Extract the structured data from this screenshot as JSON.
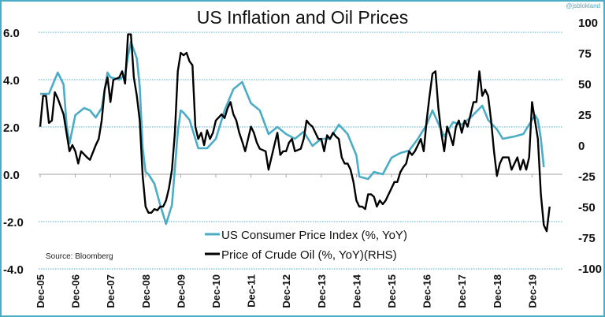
{
  "watermark": "@jsblokland",
  "chart_data": {
    "type": "line",
    "title": "US Inflation and Oil Prices",
    "source": "Source: Bloomberg",
    "grid": true,
    "legend_placement": "bottom-center",
    "colors": {
      "cpi": "#4bacc6",
      "oil": "#000000",
      "grid": "#4bacc6",
      "zero_line": "#a6a6a6",
      "frame": "#4bacc6"
    },
    "x_tick_labels": [
      "Dec-05",
      "Dec-06",
      "Dec-07",
      "Dec-08",
      "Dec-09",
      "Dec-10",
      "Dec-11",
      "Dec-12",
      "Dec-13",
      "Dec-14",
      "Dec-15",
      "Dec-16",
      "Dec-17",
      "Dec-18",
      "Dec-19"
    ],
    "xlim": [
      "2005-12",
      "2020-06"
    ],
    "y_left": {
      "ticks": [
        "6.0",
        "4.0",
        "2.0",
        "0.0",
        "-2.0",
        "-4.0"
      ],
      "ylim": [
        -4,
        6.67
      ]
    },
    "y_right": {
      "ticks": [
        "100",
        "75",
        "50",
        "25",
        "0",
        "-25",
        "-50",
        "-75",
        "-100"
      ],
      "ylim": [
        -100,
        100
      ]
    },
    "series": [
      {
        "name": "US Consumer Price Index (%, YoY)",
        "axis": "left",
        "points": [
          [
            "2005-12",
            3.4
          ],
          [
            "2006-03",
            3.4
          ],
          [
            "2006-06",
            4.3
          ],
          [
            "2006-08",
            3.8
          ],
          [
            "2006-09",
            2.1
          ],
          [
            "2006-10",
            1.3
          ],
          [
            "2006-12",
            2.5
          ],
          [
            "2007-03",
            2.8
          ],
          [
            "2007-05",
            2.7
          ],
          [
            "2007-07",
            2.4
          ],
          [
            "2007-09",
            2.8
          ],
          [
            "2007-11",
            4.3
          ],
          [
            "2007-12",
            4.1
          ],
          [
            "2008-03",
            4.0
          ],
          [
            "2008-05",
            4.2
          ],
          [
            "2008-06",
            5.0
          ],
          [
            "2008-07",
            5.6
          ],
          [
            "2008-09",
            4.9
          ],
          [
            "2008-10",
            3.7
          ],
          [
            "2008-11",
            1.1
          ],
          [
            "2008-12",
            0.1
          ],
          [
            "2009-01",
            0.0
          ],
          [
            "2009-03",
            -0.4
          ],
          [
            "2009-05",
            -1.3
          ],
          [
            "2009-07",
            -2.1
          ],
          [
            "2009-09",
            -1.3
          ],
          [
            "2009-11",
            1.8
          ],
          [
            "2009-12",
            2.7
          ],
          [
            "2010-01",
            2.6
          ],
          [
            "2010-03",
            2.3
          ],
          [
            "2010-06",
            1.1
          ],
          [
            "2010-09",
            1.1
          ],
          [
            "2010-12",
            1.5
          ],
          [
            "2011-03",
            2.7
          ],
          [
            "2011-06",
            3.6
          ],
          [
            "2011-09",
            3.9
          ],
          [
            "2011-12",
            3.0
          ],
          [
            "2012-03",
            2.7
          ],
          [
            "2012-06",
            1.7
          ],
          [
            "2012-09",
            2.0
          ],
          [
            "2012-12",
            1.7
          ],
          [
            "2013-03",
            1.5
          ],
          [
            "2013-06",
            1.8
          ],
          [
            "2013-09",
            1.2
          ],
          [
            "2013-12",
            1.5
          ],
          [
            "2014-03",
            1.5
          ],
          [
            "2014-06",
            2.1
          ],
          [
            "2014-09",
            1.7
          ],
          [
            "2014-12",
            0.8
          ],
          [
            "2015-01",
            -0.1
          ],
          [
            "2015-04",
            -0.2
          ],
          [
            "2015-06",
            0.1
          ],
          [
            "2015-09",
            0.0
          ],
          [
            "2015-12",
            0.7
          ],
          [
            "2016-03",
            0.9
          ],
          [
            "2016-06",
            1.0
          ],
          [
            "2016-09",
            1.5
          ],
          [
            "2016-12",
            2.1
          ],
          [
            "2017-02",
            2.7
          ],
          [
            "2017-06",
            1.6
          ],
          [
            "2017-09",
            2.2
          ],
          [
            "2017-12",
            2.1
          ],
          [
            "2018-03",
            2.4
          ],
          [
            "2018-07",
            2.9
          ],
          [
            "2018-09",
            2.3
          ],
          [
            "2018-12",
            1.9
          ],
          [
            "2019-02",
            1.5
          ],
          [
            "2019-06",
            1.6
          ],
          [
            "2019-09",
            1.7
          ],
          [
            "2019-12",
            2.3
          ],
          [
            "2020-01",
            2.5
          ],
          [
            "2020-02",
            2.3
          ],
          [
            "2020-03",
            1.5
          ],
          [
            "2020-04",
            0.3
          ]
        ]
      },
      {
        "name": "Price of Crude Oil (%, YoY)(RHS)",
        "axis": "right",
        "points": [
          [
            "2005-12",
            15
          ],
          [
            "2006-01",
            40
          ],
          [
            "2006-02",
            40
          ],
          [
            "2006-03",
            18
          ],
          [
            "2006-04",
            20
          ],
          [
            "2006-05",
            43
          ],
          [
            "2006-06",
            38
          ],
          [
            "2006-08",
            25
          ],
          [
            "2006-10",
            -5
          ],
          [
            "2006-11",
            0
          ],
          [
            "2006-12",
            -5
          ],
          [
            "2007-01",
            -15
          ],
          [
            "2007-02",
            -5
          ],
          [
            "2007-04",
            -10
          ],
          [
            "2007-05",
            -12
          ],
          [
            "2007-07",
            0
          ],
          [
            "2007-08",
            5
          ],
          [
            "2007-09",
            20
          ],
          [
            "2007-10",
            45
          ],
          [
            "2007-11",
            55
          ],
          [
            "2007-12",
            35
          ],
          [
            "2008-01",
            53
          ],
          [
            "2008-03",
            55
          ],
          [
            "2008-04",
            60
          ],
          [
            "2008-05",
            50
          ],
          [
            "2008-06",
            90
          ],
          [
            "2008-07",
            90
          ],
          [
            "2008-08",
            55
          ],
          [
            "2008-09",
            40
          ],
          [
            "2008-10",
            20
          ],
          [
            "2008-11",
            -25
          ],
          [
            "2008-12",
            -50
          ],
          [
            "2009-01",
            -55
          ],
          [
            "2009-02",
            -55
          ],
          [
            "2009-03",
            -52
          ],
          [
            "2009-04",
            -53
          ],
          [
            "2009-05",
            -50
          ],
          [
            "2009-06",
            -50
          ],
          [
            "2009-07",
            -45
          ],
          [
            "2009-08",
            -35
          ],
          [
            "2009-09",
            -20
          ],
          [
            "2009-10",
            10
          ],
          [
            "2009-11",
            60
          ],
          [
            "2009-12",
            75
          ],
          [
            "2010-01",
            73
          ],
          [
            "2010-02",
            75
          ],
          [
            "2010-03",
            68
          ],
          [
            "2010-04",
            65
          ],
          [
            "2010-05",
            15
          ],
          [
            "2010-06",
            5
          ],
          [
            "2010-07",
            10
          ],
          [
            "2010-08",
            0
          ],
          [
            "2010-09",
            12
          ],
          [
            "2010-10",
            5
          ],
          [
            "2010-11",
            10
          ],
          [
            "2010-12",
            20
          ],
          [
            "2011-02",
            25
          ],
          [
            "2011-03",
            22
          ],
          [
            "2011-04",
            30
          ],
          [
            "2011-05",
            35
          ],
          [
            "2011-06",
            25
          ],
          [
            "2011-07",
            20
          ],
          [
            "2011-08",
            10
          ],
          [
            "2011-09",
            3
          ],
          [
            "2011-10",
            -5
          ],
          [
            "2011-12",
            15
          ],
          [
            "2012-01",
            10
          ],
          [
            "2012-02",
            2
          ],
          [
            "2012-03",
            -3
          ],
          [
            "2012-05",
            -5
          ],
          [
            "2012-06",
            -20
          ],
          [
            "2012-07",
            -10
          ],
          [
            "2012-08",
            0
          ],
          [
            "2012-09",
            10
          ],
          [
            "2012-10",
            -8
          ],
          [
            "2012-11",
            -5
          ],
          [
            "2012-12",
            -5
          ],
          [
            "2013-01",
            2
          ],
          [
            "2013-02",
            5
          ],
          [
            "2013-03",
            -5
          ],
          [
            "2013-05",
            -3
          ],
          [
            "2013-06",
            5
          ],
          [
            "2013-07",
            20
          ],
          [
            "2013-08",
            17
          ],
          [
            "2013-09",
            15
          ],
          [
            "2013-10",
            10
          ],
          [
            "2013-11",
            5
          ],
          [
            "2013-12",
            5
          ],
          [
            "2014-01",
            -5
          ],
          [
            "2014-02",
            8
          ],
          [
            "2014-03",
            5
          ],
          [
            "2014-04",
            10
          ],
          [
            "2014-05",
            7
          ],
          [
            "2014-06",
            5
          ],
          [
            "2014-07",
            -10
          ],
          [
            "2014-08",
            -15
          ],
          [
            "2014-09",
            -15
          ],
          [
            "2014-10",
            -20
          ],
          [
            "2014-11",
            -30
          ],
          [
            "2014-12",
            -45
          ],
          [
            "2015-01",
            -50
          ],
          [
            "2015-02",
            -50
          ],
          [
            "2015-03",
            -52
          ],
          [
            "2015-04",
            -40
          ],
          [
            "2015-05",
            -40
          ],
          [
            "2015-06",
            -42
          ],
          [
            "2015-07",
            -50
          ],
          [
            "2015-08",
            -45
          ],
          [
            "2015-09",
            -48
          ],
          [
            "2015-10",
            -45
          ],
          [
            "2015-11",
            -40
          ],
          [
            "2015-12",
            -35
          ],
          [
            "2016-01",
            -30
          ],
          [
            "2016-02",
            -30
          ],
          [
            "2016-03",
            -22
          ],
          [
            "2016-04",
            -18
          ],
          [
            "2016-05",
            -15
          ],
          [
            "2016-06",
            -5
          ],
          [
            "2016-07",
            -8
          ],
          [
            "2016-08",
            -5
          ],
          [
            "2016-09",
            0
          ],
          [
            "2016-10",
            5
          ],
          [
            "2016-11",
            -5
          ],
          [
            "2016-12",
            20
          ],
          [
            "2017-01",
            40
          ],
          [
            "2017-02",
            58
          ],
          [
            "2017-03",
            60
          ],
          [
            "2017-04",
            30
          ],
          [
            "2017-05",
            10
          ],
          [
            "2017-06",
            -5
          ],
          [
            "2017-07",
            15
          ],
          [
            "2017-08",
            8
          ],
          [
            "2017-09",
            0
          ],
          [
            "2017-10",
            15
          ],
          [
            "2017-11",
            20
          ],
          [
            "2017-12",
            10
          ],
          [
            "2018-01",
            20
          ],
          [
            "2018-02",
            15
          ],
          [
            "2018-03",
            25
          ],
          [
            "2018-04",
            35
          ],
          [
            "2018-05",
            35
          ],
          [
            "2018-06",
            60
          ],
          [
            "2018-07",
            40
          ],
          [
            "2018-08",
            45
          ],
          [
            "2018-09",
            40
          ],
          [
            "2018-10",
            20
          ],
          [
            "2018-11",
            -5
          ],
          [
            "2018-12",
            -25
          ],
          [
            "2019-01",
            -15
          ],
          [
            "2019-02",
            -10
          ],
          [
            "2019-03",
            -10
          ],
          [
            "2019-04",
            -10
          ],
          [
            "2019-05",
            -20
          ],
          [
            "2019-06",
            -15
          ],
          [
            "2019-07",
            -10
          ],
          [
            "2019-08",
            -20
          ],
          [
            "2019-09",
            -12
          ],
          [
            "2019-10",
            -20
          ],
          [
            "2019-11",
            -10
          ],
          [
            "2019-12",
            35
          ],
          [
            "2020-01",
            20
          ],
          [
            "2020-02",
            5
          ],
          [
            "2020-03",
            -40
          ],
          [
            "2020-04",
            -65
          ],
          [
            "2020-05",
            -70
          ],
          [
            "2020-06",
            -50
          ]
        ]
      }
    ]
  }
}
